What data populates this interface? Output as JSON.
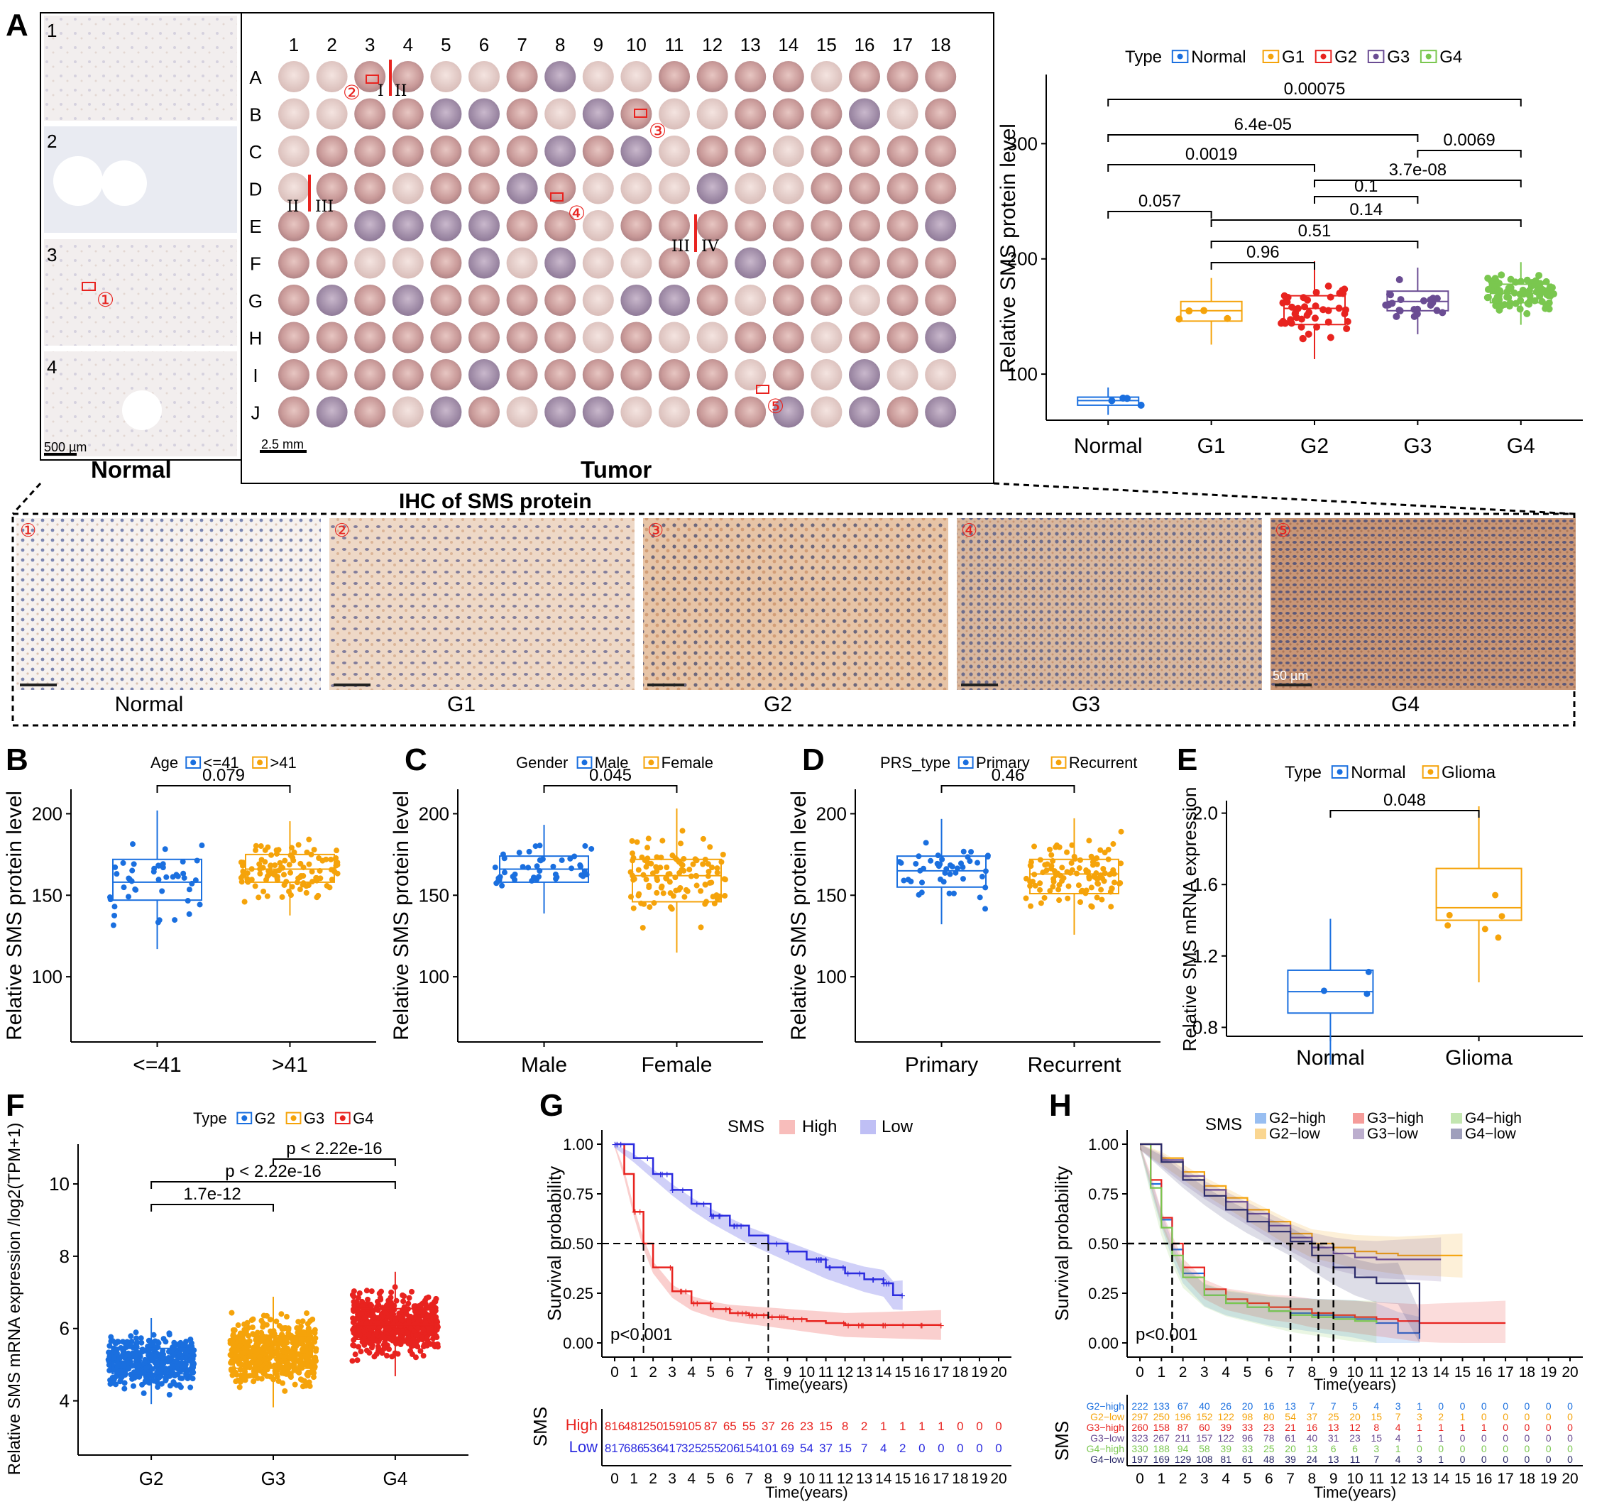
{
  "panelA": {
    "label": "A",
    "normal_title": "Normal",
    "tumor_title": "Tumor",
    "normal_rows": [
      "1",
      "2",
      "3",
      "4"
    ],
    "normal_scale": "500 µm",
    "tumor_scale": "2.5 mm",
    "cols": [
      "1",
      "2",
      "3",
      "4",
      "5",
      "6",
      "7",
      "8",
      "9",
      "10",
      "11",
      "12",
      "13",
      "14",
      "15",
      "16",
      "17",
      "18"
    ],
    "rows": [
      "A",
      "B",
      "C",
      "D",
      "E",
      "F",
      "G",
      "H",
      "I",
      "J"
    ],
    "markers": [
      "①",
      "②",
      "③",
      "④",
      "⑤"
    ],
    "roman": [
      "I",
      "II",
      "II",
      "III",
      "III",
      "IV"
    ],
    "histology_title": "IHC of SMS protein",
    "histology_labels": [
      "Normal",
      "G1",
      "G2",
      "G3",
      "G4"
    ],
    "histology_scale": "50 µm"
  },
  "colors": {
    "blue": "#1a6fdf",
    "orange": "#f5a30a",
    "red": "#e8231f",
    "purple": "#6a4c93",
    "green": "#7ac74f",
    "navy": "#2a2a6a"
  },
  "chart_data": [
    {
      "id": "A-box",
      "type": "box",
      "legend_title": "Type",
      "categories": [
        "Normal",
        "G1",
        "G2",
        "G3",
        "G4"
      ],
      "ylabel": "Relative SMS protein level",
      "yticks": [
        "100",
        "200",
        "300"
      ],
      "ylim": [
        60,
        360
      ],
      "medians": [
        77,
        155,
        157,
        163,
        170
      ],
      "q1": [
        73,
        146,
        143,
        155,
        162
      ],
      "q3": [
        80,
        163,
        168,
        172,
        178
      ],
      "pvalues": [
        "0.00075",
        "6.4e-05",
        "0.0069",
        "0.0019",
        "3.7e-08",
        "0.1",
        "0.057",
        "0.14",
        "0.51",
        "0.96"
      ]
    },
    {
      "id": "B",
      "type": "box",
      "label": "B",
      "legend_title": "Age",
      "categories": [
        "<=41",
        ">41"
      ],
      "ylabel": "Relative SMS protein level",
      "yticks": [
        "100",
        "150",
        "200"
      ],
      "ylim": [
        60,
        215
      ],
      "medians": [
        158,
        166
      ],
      "q1": [
        147,
        158
      ],
      "q3": [
        172,
        175
      ],
      "pvalue": "0.079"
    },
    {
      "id": "C",
      "type": "box",
      "label": "C",
      "legend_title": "Gender",
      "categories": [
        "Male",
        "Female"
      ],
      "ylabel": "Relative SMS protein level",
      "yticks": [
        "100",
        "150",
        "200"
      ],
      "ylim": [
        60,
        215
      ],
      "medians": [
        166,
        162
      ],
      "q1": [
        158,
        146
      ],
      "q3": [
        174,
        172
      ],
      "pvalue": "0.045"
    },
    {
      "id": "D",
      "type": "box",
      "label": "D",
      "legend_title": "PRS_type",
      "categories": [
        "Primary",
        "Recurrent"
      ],
      "ylabel": "Relative SMS protein level",
      "yticks": [
        "100",
        "150",
        "200"
      ],
      "ylim": [
        60,
        215
      ],
      "medians": [
        165,
        163
      ],
      "q1": [
        155,
        151
      ],
      "q3": [
        174,
        172
      ],
      "pvalue": "0.46"
    },
    {
      "id": "E",
      "type": "box",
      "label": "E",
      "legend_title": "Type",
      "categories": [
        "Normal",
        "Glioma"
      ],
      "ylabel": "Relative SMS mRNA expression",
      "yticks": [
        "0.8",
        "1.2",
        "1.6",
        "2.0"
      ],
      "ylim": [
        0.75,
        2.07
      ],
      "medians": [
        1.0,
        1.47
      ],
      "q1": [
        0.88,
        1.4
      ],
      "q3": [
        1.12,
        1.69
      ],
      "pvalue": "0.048"
    },
    {
      "id": "F",
      "type": "box",
      "label": "F",
      "legend_title": "Type",
      "categories": [
        "G2",
        "G3",
        "G4"
      ],
      "ylabel": "Relative SMS mRNA expression /log2(TPM+1)",
      "yticks": [
        "4",
        "6",
        "8",
        "10"
      ],
      "ylim": [
        2.5,
        11.1
      ],
      "medians": [
        5.1,
        5.35,
        6.1
      ],
      "q1": [
        4.75,
        4.9,
        5.7
      ],
      "q3": [
        5.45,
        5.8,
        6.55
      ],
      "pvalues": [
        "p < 2.22e-16",
        "p < 2.22e-16",
        "1.7e-12"
      ]
    },
    {
      "id": "G",
      "type": "line",
      "label": "G",
      "legend_title": "SMS",
      "series": [
        {
          "name": "High",
          "x": [
            0,
            0.5,
            1,
            1.5,
            2,
            3,
            4,
            5,
            6,
            7,
            8,
            9,
            10,
            11,
            12,
            13,
            14,
            15,
            16,
            17
          ],
          "y": [
            1,
            0.85,
            0.66,
            0.5,
            0.38,
            0.26,
            0.2,
            0.17,
            0.15,
            0.14,
            0.13,
            0.12,
            0.11,
            0.1,
            0.09,
            0.09,
            0.09,
            0.09,
            0.09,
            0.09
          ]
        },
        {
          "name": "Low",
          "x": [
            0,
            1,
            2,
            3,
            4,
            5,
            6,
            7,
            8,
            9,
            10,
            11,
            12,
            13,
            14,
            14.5,
            15
          ],
          "y": [
            1,
            0.93,
            0.85,
            0.77,
            0.7,
            0.64,
            0.59,
            0.54,
            0.5,
            0.46,
            0.42,
            0.38,
            0.35,
            0.32,
            0.3,
            0.24,
            0.24
          ]
        }
      ],
      "ylabel": "Survival probability",
      "xlabel": "Time(years)",
      "yticks": [
        "0.00",
        "0.25",
        "0.50",
        "0.75",
        "1.00"
      ],
      "xticks": [
        "0",
        "1",
        "2",
        "3",
        "4",
        "5",
        "6",
        "7",
        "8",
        "9",
        "10",
        "11",
        "12",
        "13",
        "14",
        "15",
        "16",
        "17",
        "18",
        "19",
        "20"
      ],
      "pvalue": "p<0.001",
      "risk_label": "SMS",
      "risk_rows": [
        {
          "name": "High",
          "values": [
            "816",
            "481",
            "250",
            "159",
            "105",
            "87",
            "65",
            "55",
            "37",
            "26",
            "23",
            "15",
            "8",
            "2",
            "1",
            "1",
            "1",
            "1",
            "0",
            "0",
            "0"
          ]
        },
        {
          "name": "Low",
          "values": [
            "817",
            "686",
            "536",
            "417",
            "325",
            "255",
            "206",
            "154",
            "101",
            "69",
            "54",
            "37",
            "15",
            "7",
            "4",
            "2",
            "0",
            "0",
            "0",
            "0",
            "0"
          ]
        }
      ]
    },
    {
      "id": "H",
      "type": "line",
      "label": "H",
      "legend_title": "SMS",
      "legend_items": [
        "G2−high",
        "G3−high",
        "G4−high",
        "G2−low",
        "G3−low",
        "G4−low"
      ],
      "ylabel": "Survival probability",
      "xlabel": "Time(years)",
      "yticks": [
        "0.00",
        "0.25",
        "0.50",
        "0.75",
        "1.00"
      ],
      "xticks": [
        "0",
        "1",
        "2",
        "3",
        "4",
        "5",
        "6",
        "7",
        "8",
        "9",
        "10",
        "11",
        "12",
        "13",
        "14",
        "15",
        "16",
        "17",
        "18",
        "19",
        "20"
      ],
      "pvalue": "p<0.001",
      "risk_label": "SMS",
      "risk_rows": [
        {
          "name": "G2−high",
          "values": [
            "222",
            "133",
            "67",
            "40",
            "26",
            "20",
            "16",
            "13",
            "7",
            "7",
            "5",
            "4",
            "3",
            "1",
            "0",
            "0",
            "0",
            "0",
            "0",
            "0",
            "0"
          ]
        },
        {
          "name": "G2−low",
          "values": [
            "297",
            "250",
            "196",
            "152",
            "122",
            "98",
            "80",
            "54",
            "37",
            "25",
            "20",
            "15",
            "7",
            "3",
            "2",
            "1",
            "0",
            "0",
            "0",
            "0",
            "0"
          ]
        },
        {
          "name": "G3−high",
          "values": [
            "260",
            "158",
            "87",
            "60",
            "39",
            "33",
            "23",
            "21",
            "16",
            "13",
            "12",
            "8",
            "4",
            "1",
            "1",
            "1",
            "1",
            "0",
            "0",
            "0",
            "0"
          ]
        },
        {
          "name": "G3−low",
          "values": [
            "323",
            "267",
            "211",
            "157",
            "122",
            "96",
            "78",
            "61",
            "40",
            "31",
            "23",
            "15",
            "4",
            "1",
            "1",
            "0",
            "0",
            "0",
            "0",
            "0",
            "0"
          ]
        },
        {
          "name": "G4−high",
          "values": [
            "330",
            "188",
            "94",
            "58",
            "39",
            "33",
            "25",
            "20",
            "13",
            "6",
            "6",
            "3",
            "1",
            "0",
            "0",
            "0",
            "0",
            "0",
            "0",
            "0",
            "0"
          ]
        },
        {
          "name": "G4−low",
          "values": [
            "197",
            "169",
            "129",
            "108",
            "81",
            "61",
            "48",
            "39",
            "24",
            "13",
            "11",
            "7",
            "4",
            "3",
            "1",
            "0",
            "0",
            "0",
            "0",
            "0",
            "0"
          ]
        }
      ]
    }
  ]
}
